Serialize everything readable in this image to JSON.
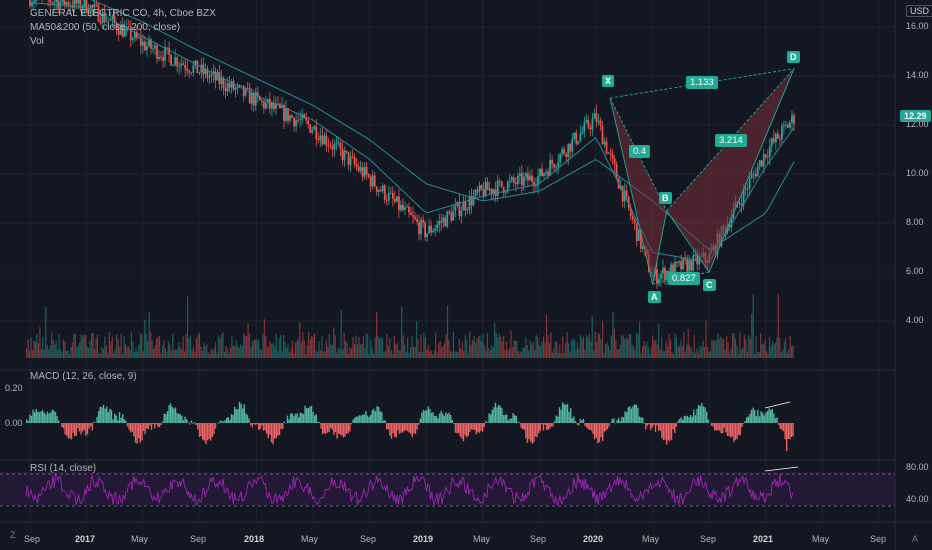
{
  "header": {
    "title": "GENERAL ELECTRIC CO, 4h, Cboe BZX",
    "ma_legend": "MA50&200 (50, close, 200, close)",
    "vol_legend": "Vol"
  },
  "currency": "USD",
  "current_price": "12.29",
  "price_axis": [
    "16.00",
    "14.00",
    "12.00",
    "10.00",
    "8.00",
    "6.00",
    "4.00"
  ],
  "macd": {
    "legend": "MACD (12, 26, close, 9)",
    "ticks": [
      "0.20",
      "0.00"
    ]
  },
  "rsi": {
    "legend": "RSI (14, close)",
    "ticks": [
      "80.00",
      "40.00"
    ]
  },
  "time_axis": [
    {
      "label": "Sep",
      "bold": false
    },
    {
      "label": "2017",
      "bold": true
    },
    {
      "label": "May",
      "bold": false
    },
    {
      "label": "Sep",
      "bold": false
    },
    {
      "label": "2018",
      "bold": true
    },
    {
      "label": "May",
      "bold": false
    },
    {
      "label": "Sep",
      "bold": false
    },
    {
      "label": "2019",
      "bold": true
    },
    {
      "label": "May",
      "bold": false
    },
    {
      "label": "Sep",
      "bold": false
    },
    {
      "label": "2020",
      "bold": true
    },
    {
      "label": "May",
      "bold": false
    },
    {
      "label": "Sep",
      "bold": false
    },
    {
      "label": "2021",
      "bold": true
    },
    {
      "label": "May",
      "bold": false
    },
    {
      "label": "Sep",
      "bold": false
    }
  ],
  "pattern": {
    "points": [
      {
        "label": "X",
        "date": "2020-02",
        "price": 13.1
      },
      {
        "label": "A",
        "date": "2020-05",
        "price": 5.5
      },
      {
        "label": "B",
        "date": "2020-06",
        "price": 8.5
      },
      {
        "label": "C",
        "date": "2020-09",
        "price": 6.0
      },
      {
        "label": "D",
        "date": "2021-03",
        "price": 14.3
      }
    ],
    "ratios": [
      "1.133",
      "0.4",
      "3.214",
      "0.827"
    ],
    "fill_color": "#7a2e3a",
    "line_color": "#22ab94"
  },
  "corner": {
    "left": "Z",
    "right": "A"
  },
  "chart_data": {
    "type": "line",
    "title": "GENERAL ELECTRIC CO, 4h, Cboe BZX",
    "ylabel": "USD",
    "ylim": [
      3.0,
      17.0
    ],
    "x": [
      "2016-09",
      "2017-01",
      "2017-05",
      "2017-09",
      "2018-01",
      "2018-05",
      "2018-09",
      "2019-01",
      "2019-05",
      "2019-09",
      "2020-01",
      "2020-05",
      "2020-09",
      "2021-01",
      "2021-03"
    ],
    "series": [
      {
        "name": "Price",
        "values": [
          17.2,
          16.9,
          15.3,
          14.2,
          13.0,
          11.9,
          9.8,
          7.6,
          9.3,
          9.9,
          12.3,
          5.8,
          6.6,
          10.9,
          12.29
        ]
      },
      {
        "name": "MA50",
        "values": [
          17.0,
          16.8,
          15.6,
          14.4,
          13.2,
          12.2,
          10.6,
          8.4,
          9.1,
          9.6,
          11.5,
          6.8,
          6.4,
          10.3,
          11.9
        ]
      },
      {
        "name": "MA200",
        "values": [
          17.5,
          17.2,
          16.2,
          15.0,
          13.9,
          12.8,
          11.4,
          9.6,
          8.9,
          9.3,
          10.6,
          8.9,
          6.9,
          8.4,
          10.5
        ]
      }
    ],
    "colors": {
      "price_up": "#26a69a",
      "price_down": "#ef5350",
      "ma50": "#2c8c99",
      "ma200": "#2c8c99",
      "macd_up": "#5cc8b0",
      "macd_down": "#ff6b6b",
      "rsi": "#9c27b0"
    }
  }
}
